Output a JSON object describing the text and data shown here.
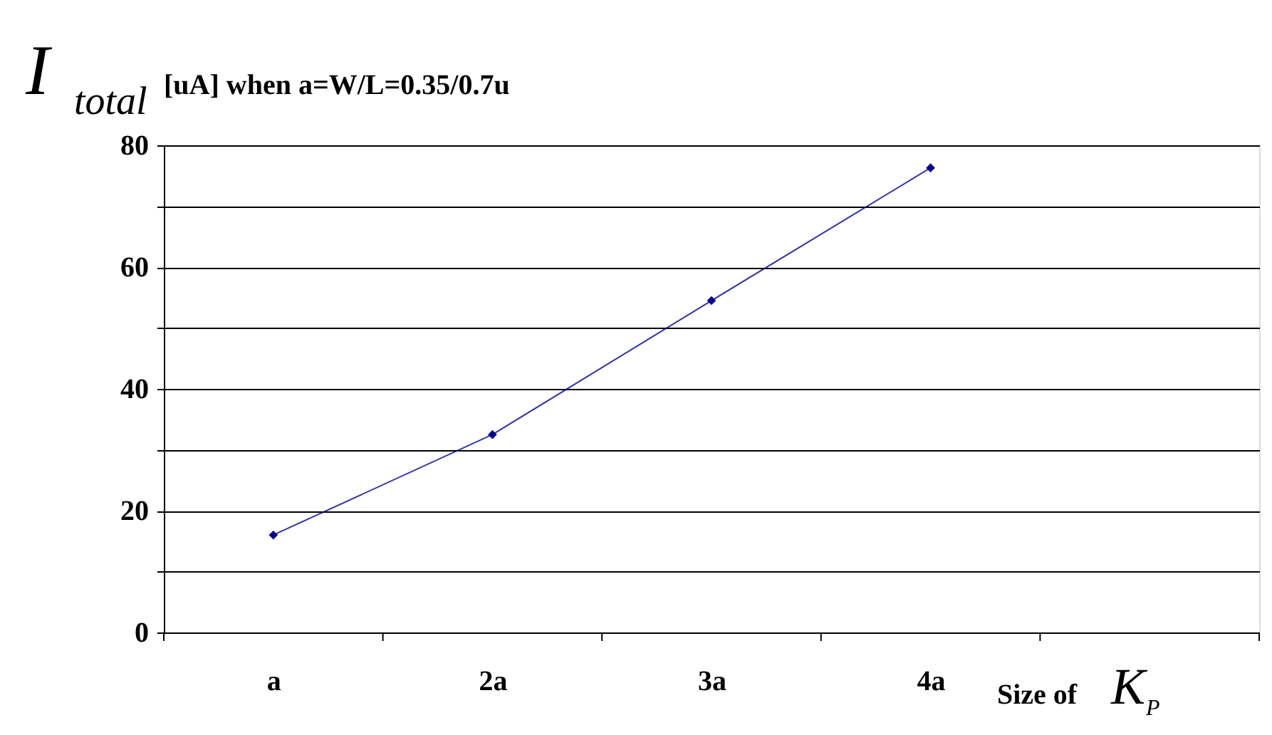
{
  "chart_data": {
    "type": "line",
    "title": "I$_{total}$ [uA]  when a=W/L=0.35/0.7u",
    "xlabel": "Size of K$_{P}$",
    "categories": [
      "a",
      "2a",
      "3a",
      "4a",
      null
    ],
    "series": [
      {
        "color": "#00008b",
        "values": [
          16,
          32.5,
          54.5,
          76.3,
          null
        ]
      }
    ],
    "ylim": [
      0,
      80
    ],
    "yticks": [
      0,
      {
        "value": 10,
        "label": null
      },
      20,
      {
        "value": 30,
        "label": null
      },
      40,
      {
        "value": 50,
        "label": null
      },
      60,
      {
        "value": 70,
        "label": null
      },
      80
    ],
    "grid": "y",
    "marker": "diamond",
    "line_style": "solid"
  }
}
